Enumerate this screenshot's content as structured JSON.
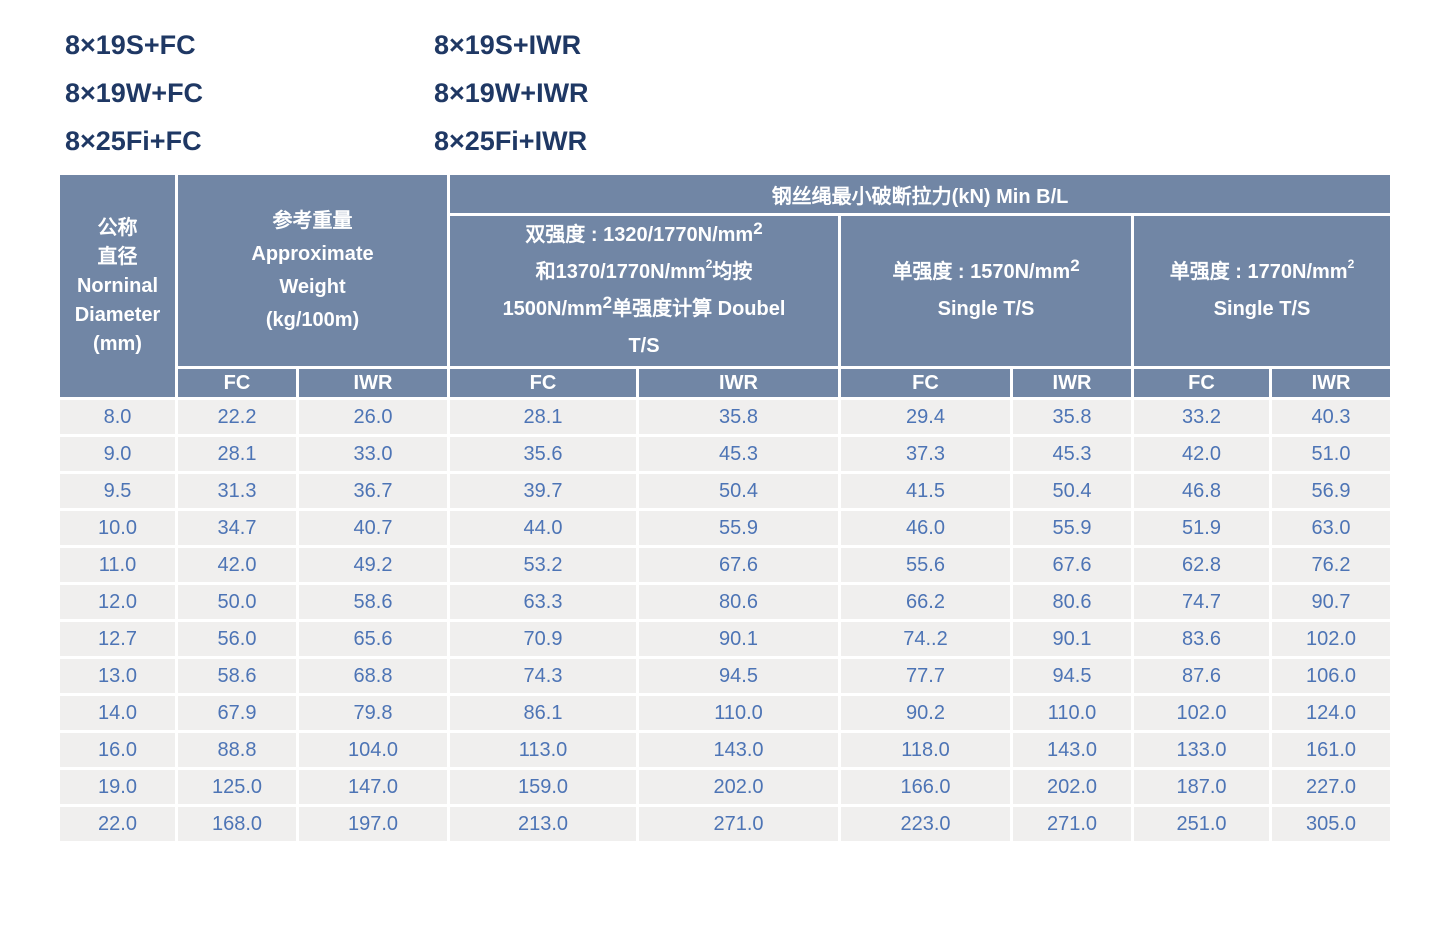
{
  "colors": {
    "header_background": "#7186a5",
    "header_text": "#ffffff",
    "row_background": "#f0efee",
    "data_text": "#4d74b5",
    "label_text": "#1f3864",
    "grid_line": "#ffffff"
  },
  "rope_constructions": [
    [
      "8×19S+FC",
      "8×19W+FC",
      "8×25Fi+FC"
    ],
    [
      "8×19S+IWR",
      "8×19W+IWR",
      "8×25Fi+IWR"
    ]
  ],
  "table": {
    "header": {
      "diameter_lines": [
        "公称",
        "直径",
        "Norninal",
        "Diameter",
        "(mm)"
      ],
      "weight_lines": [
        "参考重量",
        "Approximate",
        "Weight",
        "(kg/100m)"
      ],
      "min_breaking_load": "钢丝绳最小破断拉力(kN) Min B/L",
      "dual_strength": {
        "l1": "双强度 : 1320/1770N/mm",
        "l1_sup": "2",
        "l2a": "和1370/1770N/mm",
        "l2_sup": "2",
        "l2b": "均按",
        "l3a": "1500N/mm",
        "l3_sup": "2",
        "l3b": "单强度计算 Doubel",
        "l4": "T/S"
      },
      "single_1570": {
        "l1": "单强度 : 1570N/mm",
        "sup": "2",
        "l2": "Single T/S"
      },
      "single_1770": {
        "l1": "单强度 : 1770N/mm",
        "sup": "2",
        "l2": "Single T/S"
      }
    },
    "core_type_headers": [
      "FC",
      "IWR",
      "FC",
      "IWR",
      "FC",
      "IWR",
      "FC",
      "IWR"
    ],
    "rows": [
      [
        "8.0",
        "22.2",
        "26.0",
        "28.1",
        "35.8",
        "29.4",
        "35.8",
        "33.2",
        "40.3"
      ],
      [
        "9.0",
        "28.1",
        "33.0",
        "35.6",
        "45.3",
        "37.3",
        "45.3",
        "42.0",
        "51.0"
      ],
      [
        "9.5",
        "31.3",
        "36.7",
        "39.7",
        "50.4",
        "41.5",
        "50.4",
        "46.8",
        "56.9"
      ],
      [
        "10.0",
        "34.7",
        "40.7",
        "44.0",
        "55.9",
        "46.0",
        "55.9",
        "51.9",
        "63.0"
      ],
      [
        "11.0",
        "42.0",
        "49.2",
        "53.2",
        "67.6",
        "55.6",
        "67.6",
        "62.8",
        "76.2"
      ],
      [
        "12.0",
        "50.0",
        "58.6",
        "63.3",
        "80.6",
        "66.2",
        "80.6",
        "74.7",
        "90.7"
      ],
      [
        "12.7",
        "56.0",
        "65.6",
        "70.9",
        "90.1",
        "74..2",
        "90.1",
        "83.6",
        "102.0"
      ],
      [
        "13.0",
        "58.6",
        "68.8",
        "74.3",
        "94.5",
        "77.7",
        "94.5",
        "87.6",
        "106.0"
      ],
      [
        "14.0",
        "67.9",
        "79.8",
        "86.1",
        "110.0",
        "90.2",
        "110.0",
        "102.0",
        "124.0"
      ],
      [
        "16.0",
        "88.8",
        "104.0",
        "113.0",
        "143.0",
        "118.0",
        "143.0",
        "133.0",
        "161.0"
      ],
      [
        "19.0",
        "125.0",
        "147.0",
        "159.0",
        "202.0",
        "166.0",
        "202.0",
        "187.0",
        "227.0"
      ],
      [
        "22.0",
        "168.0",
        "197.0",
        "213.0",
        "271.0",
        "223.0",
        "271.0",
        "251.0",
        "305.0"
      ]
    ]
  }
}
